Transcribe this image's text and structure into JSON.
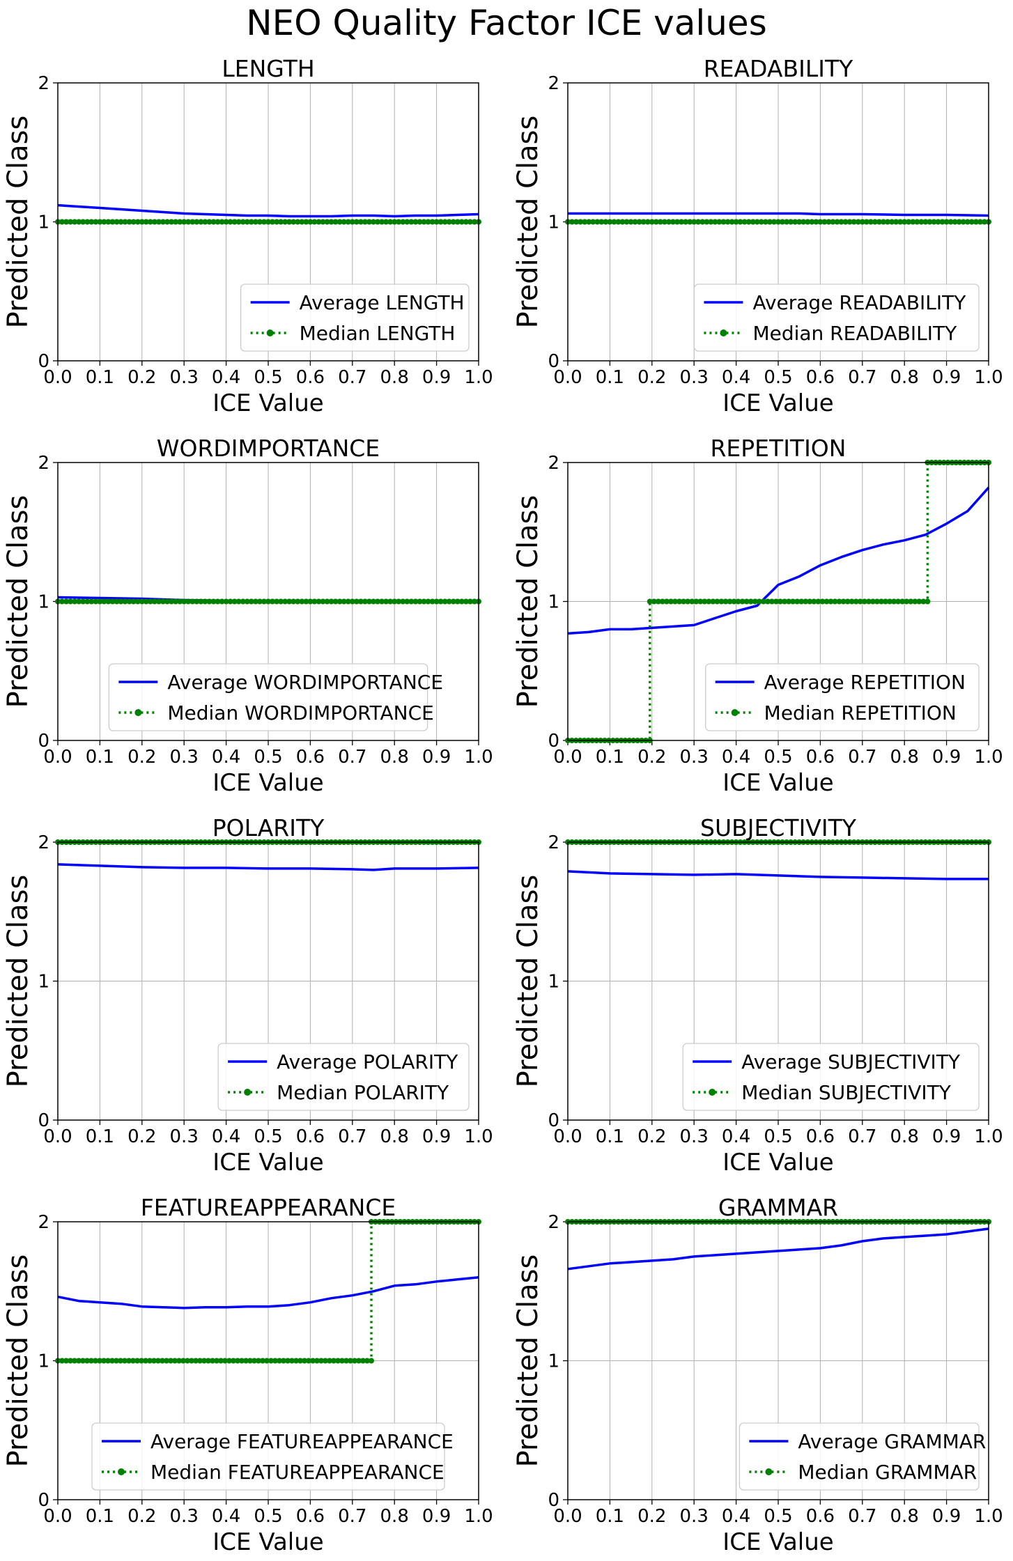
{
  "figure_title": "NEO Quality Factor ICE values",
  "chart_data": [
    {
      "type": "line",
      "title": "LENGTH",
      "xlabel": "ICE Value",
      "ylabel": "Predicted Class",
      "xlim": [
        0,
        1
      ],
      "ylim": [
        0,
        2
      ],
      "xticks": [
        "0.0",
        "0.1",
        "0.2",
        "0.3",
        "0.4",
        "0.5",
        "0.6",
        "0.7",
        "0.8",
        "0.9",
        "1.0"
      ],
      "yticks": [
        "0",
        "1",
        "2"
      ],
      "grid": true,
      "legend_position": "lower-right",
      "series": [
        {
          "name": "Average LENGTH",
          "color": "#0000ff",
          "style": "solid",
          "x": [
            0,
            0.05,
            0.1,
            0.15,
            0.2,
            0.25,
            0.3,
            0.35,
            0.4,
            0.45,
            0.5,
            0.55,
            0.6,
            0.65,
            0.7,
            0.75,
            0.8,
            0.85,
            0.9,
            0.95,
            1.0
          ],
          "y": [
            1.12,
            1.11,
            1.1,
            1.09,
            1.08,
            1.07,
            1.06,
            1.055,
            1.05,
            1.045,
            1.045,
            1.04,
            1.04,
            1.04,
            1.045,
            1.045,
            1.04,
            1.045,
            1.045,
            1.05,
            1.055
          ]
        },
        {
          "name": "Median LENGTH",
          "color": "#008000",
          "style": "dotted-marker",
          "x": [
            0,
            1.0
          ],
          "y": [
            1,
            1
          ]
        }
      ]
    },
    {
      "type": "line",
      "title": "READABILITY",
      "xlabel": "ICE Value",
      "ylabel": "Predicted Class",
      "xlim": [
        0,
        1
      ],
      "ylim": [
        0,
        2
      ],
      "xticks": [
        "0.0",
        "0.1",
        "0.2",
        "0.3",
        "0.4",
        "0.5",
        "0.6",
        "0.7",
        "0.8",
        "0.9",
        "1.0"
      ],
      "yticks": [
        "0",
        "1",
        "2"
      ],
      "grid": true,
      "legend_position": "lower-right",
      "series": [
        {
          "name": "Average READABILITY",
          "color": "#0000ff",
          "style": "solid",
          "x": [
            0,
            0.1,
            0.2,
            0.3,
            0.4,
            0.5,
            0.55,
            0.6,
            0.7,
            0.8,
            0.9,
            1.0
          ],
          "y": [
            1.06,
            1.06,
            1.06,
            1.06,
            1.06,
            1.06,
            1.06,
            1.055,
            1.055,
            1.05,
            1.05,
            1.045
          ]
        },
        {
          "name": "Median READABILITY",
          "color": "#008000",
          "style": "dotted-marker",
          "x": [
            0,
            1.0
          ],
          "y": [
            1,
            1
          ]
        }
      ]
    },
    {
      "type": "line",
      "title": "WORDIMPORTANCE",
      "xlabel": "ICE Value",
      "ylabel": "Predicted Class",
      "xlim": [
        0,
        1
      ],
      "ylim": [
        0,
        2
      ],
      "xticks": [
        "0.0",
        "0.1",
        "0.2",
        "0.3",
        "0.4",
        "0.5",
        "0.6",
        "0.7",
        "0.8",
        "0.9",
        "1.0"
      ],
      "yticks": [
        "0",
        "1",
        "2"
      ],
      "grid": true,
      "legend_position": "lower-center",
      "series": [
        {
          "name": "Average WORDIMPORTANCE",
          "color": "#0000ff",
          "style": "solid",
          "x": [
            0,
            0.1,
            0.2,
            0.3,
            0.4,
            0.5,
            0.6,
            0.7,
            0.8,
            0.9,
            1.0
          ],
          "y": [
            1.03,
            1.025,
            1.02,
            1.01,
            1.005,
            1.0,
            1.0,
            1.0,
            1.0,
            1.0,
            1.0
          ]
        },
        {
          "name": "Median WORDIMPORTANCE",
          "color": "#008000",
          "style": "dotted-marker",
          "x": [
            0,
            1.0
          ],
          "y": [
            1,
            1
          ]
        }
      ]
    },
    {
      "type": "line",
      "title": "REPETITION",
      "xlabel": "ICE Value",
      "ylabel": "Predicted Class",
      "xlim": [
        0,
        1
      ],
      "ylim": [
        0,
        2
      ],
      "xticks": [
        "0.0",
        "0.1",
        "0.2",
        "0.3",
        "0.4",
        "0.5",
        "0.6",
        "0.7",
        "0.8",
        "0.9",
        "1.0"
      ],
      "yticks": [
        "0",
        "1",
        "2"
      ],
      "grid": true,
      "legend_position": "lower-right",
      "series": [
        {
          "name": "Average REPETITION",
          "color": "#0000ff",
          "style": "solid",
          "x": [
            0,
            0.05,
            0.1,
            0.15,
            0.2,
            0.25,
            0.3,
            0.35,
            0.4,
            0.45,
            0.5,
            0.55,
            0.6,
            0.65,
            0.7,
            0.75,
            0.8,
            0.85,
            0.9,
            0.95,
            1.0
          ],
          "y": [
            0.77,
            0.78,
            0.8,
            0.8,
            0.81,
            0.82,
            0.83,
            0.88,
            0.93,
            0.97,
            1.12,
            1.18,
            1.26,
            1.32,
            1.37,
            1.41,
            1.44,
            1.48,
            1.56,
            1.65,
            1.82
          ]
        },
        {
          "name": "Median REPETITION",
          "color": "#008000",
          "style": "dotted-marker",
          "x": [
            0,
            0.195,
            0.195,
            0.855,
            0.855,
            1.0
          ],
          "y": [
            0,
            0,
            1,
            1,
            2,
            2
          ]
        }
      ]
    },
    {
      "type": "line",
      "title": "POLARITY",
      "xlabel": "ICE Value",
      "ylabel": "Predicted Class",
      "xlim": [
        0,
        1
      ],
      "ylim": [
        0,
        2
      ],
      "xticks": [
        "0.0",
        "0.1",
        "0.2",
        "0.3",
        "0.4",
        "0.5",
        "0.6",
        "0.7",
        "0.8",
        "0.9",
        "1.0"
      ],
      "yticks": [
        "0",
        "1",
        "2"
      ],
      "grid": true,
      "legend_position": "lower-right",
      "series": [
        {
          "name": "Average POLARITY",
          "color": "#0000ff",
          "style": "solid",
          "x": [
            0,
            0.1,
            0.2,
            0.3,
            0.4,
            0.5,
            0.6,
            0.7,
            0.75,
            0.8,
            0.9,
            1.0
          ],
          "y": [
            1.84,
            1.83,
            1.82,
            1.815,
            1.815,
            1.81,
            1.81,
            1.805,
            1.8,
            1.81,
            1.81,
            1.815
          ]
        },
        {
          "name": "Median POLARITY",
          "color": "#008000",
          "style": "dotted-marker",
          "x": [
            0,
            1.0
          ],
          "y": [
            2,
            2
          ]
        }
      ]
    },
    {
      "type": "line",
      "title": "SUBJECTIVITY",
      "xlabel": "ICE Value",
      "ylabel": "Predicted Class",
      "xlim": [
        0,
        1
      ],
      "ylim": [
        0,
        2
      ],
      "xticks": [
        "0.0",
        "0.1",
        "0.2",
        "0.3",
        "0.4",
        "0.5",
        "0.6",
        "0.7",
        "0.8",
        "0.9",
        "1.0"
      ],
      "yticks": [
        "0",
        "1",
        "2"
      ],
      "grid": true,
      "legend_position": "lower-right",
      "series": [
        {
          "name": "Average SUBJECTIVITY",
          "color": "#0000ff",
          "style": "solid",
          "x": [
            0,
            0.1,
            0.2,
            0.3,
            0.4,
            0.5,
            0.6,
            0.7,
            0.8,
            0.9,
            1.0
          ],
          "y": [
            1.79,
            1.775,
            1.77,
            1.765,
            1.77,
            1.76,
            1.75,
            1.745,
            1.74,
            1.735,
            1.735
          ]
        },
        {
          "name": "Median SUBJECTIVITY",
          "color": "#008000",
          "style": "dotted-marker",
          "x": [
            0,
            1.0
          ],
          "y": [
            2,
            2
          ]
        }
      ]
    },
    {
      "type": "line",
      "title": "FEATUREAPPEARANCE",
      "xlabel": "ICE Value",
      "ylabel": "Predicted Class",
      "xlim": [
        0,
        1
      ],
      "ylim": [
        0,
        2
      ],
      "xticks": [
        "0.0",
        "0.1",
        "0.2",
        "0.3",
        "0.4",
        "0.5",
        "0.6",
        "0.7",
        "0.8",
        "0.9",
        "1.0"
      ],
      "yticks": [
        "0",
        "1",
        "2"
      ],
      "grid": true,
      "legend_position": "lower-center",
      "series": [
        {
          "name": "Average FEATUREAPPEARANCE",
          "color": "#0000ff",
          "style": "solid",
          "x": [
            0,
            0.05,
            0.1,
            0.15,
            0.2,
            0.25,
            0.3,
            0.35,
            0.4,
            0.45,
            0.5,
            0.55,
            0.6,
            0.65,
            0.7,
            0.75,
            0.8,
            0.85,
            0.9,
            0.95,
            1.0
          ],
          "y": [
            1.46,
            1.43,
            1.42,
            1.41,
            1.39,
            1.385,
            1.38,
            1.385,
            1.385,
            1.39,
            1.39,
            1.4,
            1.42,
            1.45,
            1.47,
            1.5,
            1.54,
            1.55,
            1.57,
            1.585,
            1.6
          ]
        },
        {
          "name": "Median FEATUREAPPEARANCE",
          "color": "#008000",
          "style": "dotted-marker",
          "x": [
            0,
            0.745,
            0.745,
            1.0
          ],
          "y": [
            1,
            1,
            2,
            2
          ]
        }
      ]
    },
    {
      "type": "line",
      "title": "GRAMMAR",
      "xlabel": "ICE Value",
      "ylabel": "Predicted Class",
      "xlim": [
        0,
        1
      ],
      "ylim": [
        0,
        2
      ],
      "xticks": [
        "0.0",
        "0.1",
        "0.2",
        "0.3",
        "0.4",
        "0.5",
        "0.6",
        "0.7",
        "0.8",
        "0.9",
        "1.0"
      ],
      "yticks": [
        "0",
        "1",
        "2"
      ],
      "grid": true,
      "legend_position": "lower-right",
      "series": [
        {
          "name": "Average GRAMMAR",
          "color": "#0000ff",
          "style": "solid",
          "x": [
            0,
            0.05,
            0.1,
            0.15,
            0.2,
            0.25,
            0.3,
            0.35,
            0.4,
            0.45,
            0.5,
            0.55,
            0.6,
            0.65,
            0.7,
            0.75,
            0.8,
            0.85,
            0.9,
            0.95,
            1.0
          ],
          "y": [
            1.66,
            1.68,
            1.7,
            1.71,
            1.72,
            1.73,
            1.75,
            1.76,
            1.77,
            1.78,
            1.79,
            1.8,
            1.81,
            1.83,
            1.86,
            1.88,
            1.89,
            1.9,
            1.91,
            1.93,
            1.95
          ]
        },
        {
          "name": "Median GRAMMAR",
          "color": "#008000",
          "style": "dotted-marker",
          "x": [
            0,
            1.0
          ],
          "y": [
            2,
            2
          ]
        }
      ]
    }
  ]
}
